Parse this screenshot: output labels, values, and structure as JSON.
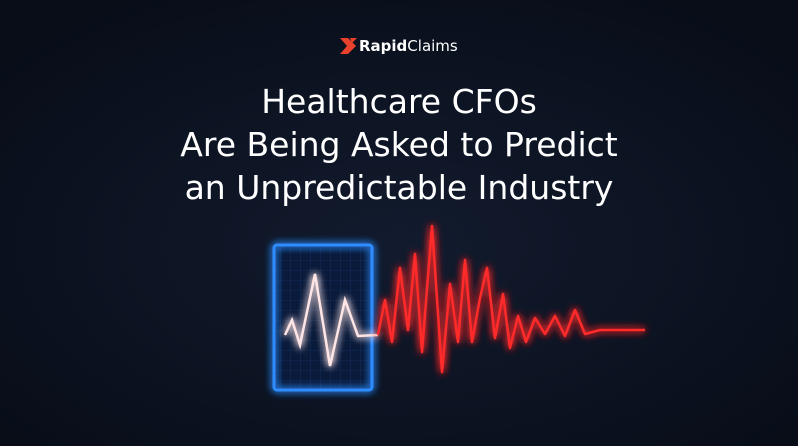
{
  "logo": {
    "bold": "Rapid",
    "regular": "Claims"
  },
  "title": {
    "lines": [
      "Healthcare CFOs",
      "Are Being Asked to Predict",
      "an Unpredictable Industry"
    ]
  }
}
